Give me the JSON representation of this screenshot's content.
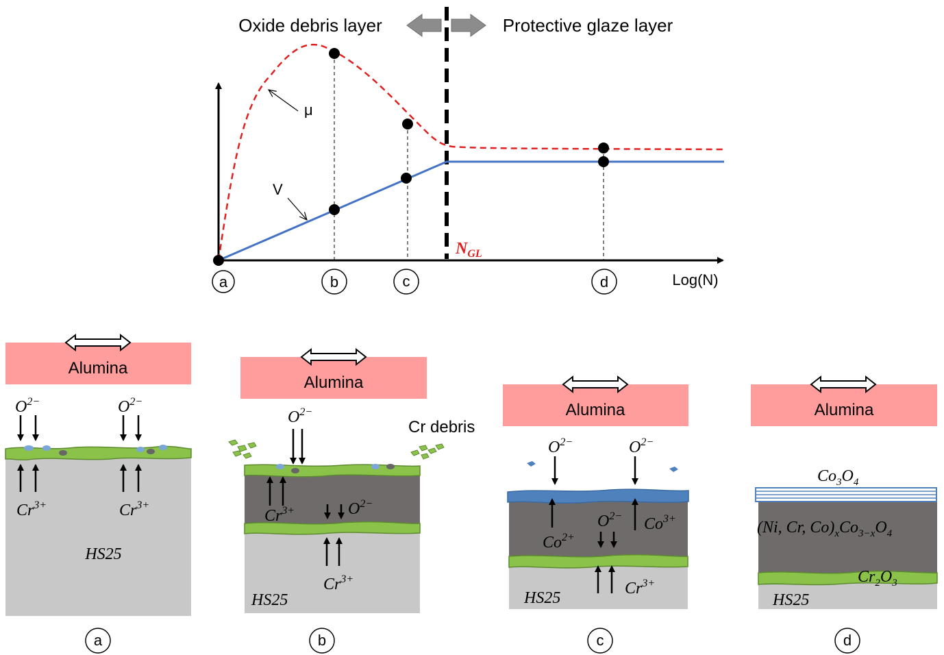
{
  "top_chart": {
    "left_region_label": "Oxide debris layer",
    "right_region_label": "Protective glaze layer",
    "x_axis_label": "Log(N)",
    "threshold_label": "N",
    "threshold_subscript": "GL",
    "curve_mu_label": "μ",
    "curve_v_label": "V",
    "point_labels": [
      "a",
      "b",
      "c",
      "d"
    ],
    "colors": {
      "mu_curve": "#e02020",
      "v_curve": "#4472c4",
      "threshold": "#e02020"
    }
  },
  "panels": [
    {
      "id": "a",
      "counterface": "Alumina",
      "substrate": "HS25",
      "ions": [
        {
          "base": "O",
          "sup": "2−"
        },
        {
          "base": "O",
          "sup": "2−"
        },
        {
          "base": "Cr",
          "sup": "3+"
        },
        {
          "base": "Cr",
          "sup": "3+"
        }
      ],
      "circle_label": "a"
    },
    {
      "id": "b",
      "counterface": "Alumina",
      "substrate": "HS25",
      "debris_label": "Cr debris",
      "ions": [
        {
          "base": "O",
          "sup": "2−"
        },
        {
          "base": "Cr",
          "sup": "3+"
        },
        {
          "base": "O",
          "sup": "2−"
        },
        {
          "base": "Cr",
          "sup": "3+"
        }
      ],
      "circle_label": "b"
    },
    {
      "id": "c",
      "counterface": "Alumina",
      "substrate": "HS25",
      "ions": [
        {
          "base": "O",
          "sup": "2−"
        },
        {
          "base": "O",
          "sup": "2−"
        },
        {
          "base": "Co",
          "sup": "2+"
        },
        {
          "base": "O",
          "sup": "2−"
        },
        {
          "base": "Co",
          "sup": "3+"
        },
        {
          "base": "Cr",
          "sup": "3+"
        }
      ],
      "circle_label": "c"
    },
    {
      "id": "d",
      "counterface": "Alumina",
      "substrate": "HS25",
      "top_layer": {
        "p1": "Co",
        "s1": "3",
        "p2": "O",
        "s2": "4"
      },
      "middle_layer": {
        "p1": "(Ni, Cr, Co)",
        "s1": "x",
        "p2": "Co",
        "s2": "3−x",
        "p3": "O",
        "s3": "4"
      },
      "bottom_layer": {
        "p1": "Cr",
        "s1": "2",
        "p2": "O",
        "s2": "3"
      },
      "circle_label": "d"
    }
  ]
}
